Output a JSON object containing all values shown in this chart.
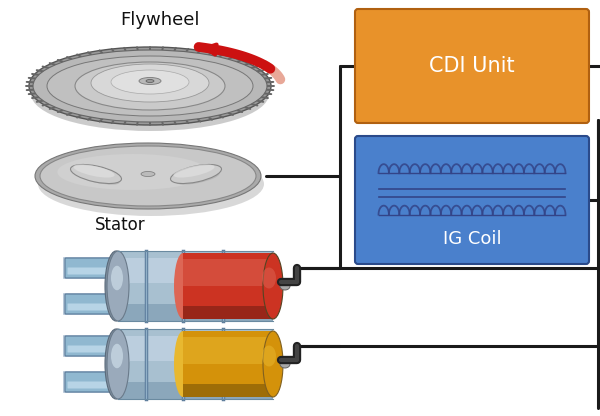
{
  "bg_color": "#ffffff",
  "title": "Flywheel",
  "stator_label": "Stator",
  "cdi_label": "CDI Unit",
  "ig_coil_label": "IG Coil",
  "cdi_box_color": "#E8922A",
  "ig_coil_box_color": "#4A80CC",
  "wire_color": "#1a1a1a",
  "arrow_color": "#CC1111",
  "arrow_tail_color": "#DDAA99",
  "coil_color": "#334488",
  "text_color": "#111111",
  "spark_plug_red": "#CC2222",
  "spark_plug_yellow": "#D4920A",
  "steel_light": "#D8D8D8",
  "steel_mid": "#BBBBBB",
  "steel_dark": "#888888",
  "blue_steel_light": "#C8D8E8",
  "blue_steel_mid": "#7098B8",
  "blue_steel_dark": "#3A5878"
}
